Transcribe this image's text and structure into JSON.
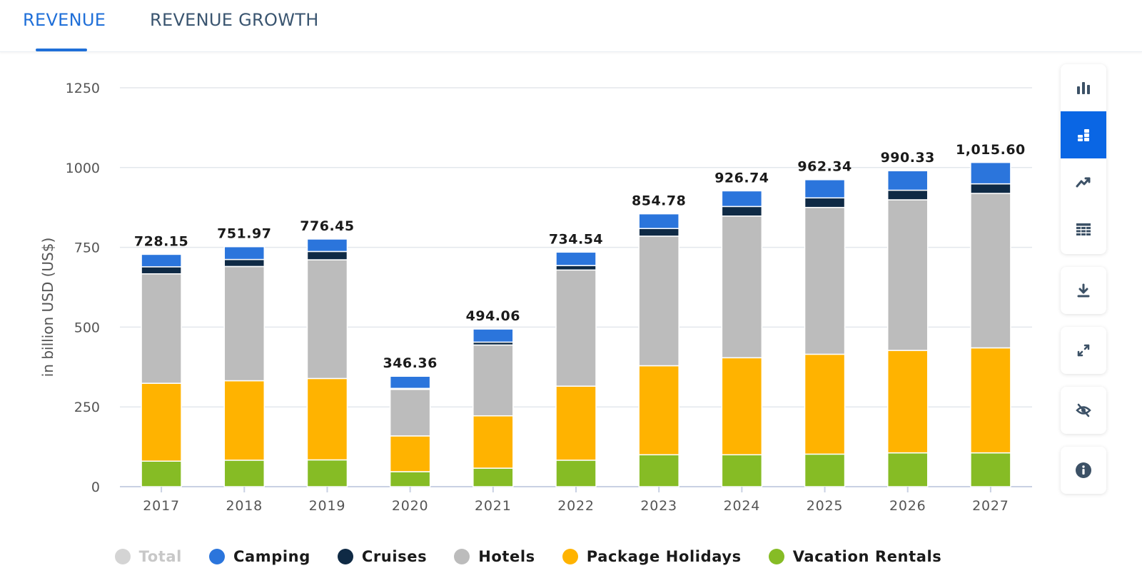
{
  "tabs": [
    {
      "label": "REVENUE",
      "active": true
    },
    {
      "label": "REVENUE GROWTH",
      "active": false
    }
  ],
  "toolbar": {
    "icons": [
      "bar-chart-icon",
      "stacked-bar-icon",
      "line-chart-icon",
      "table-icon",
      "download-icon",
      "fullscreen-icon",
      "hide-icon",
      "info-icon"
    ],
    "active_color": "#0a66e4"
  },
  "chart_data": {
    "type": "bar",
    "stacked": true,
    "title": "",
    "xlabel": "",
    "ylabel": "in billion USD (US$)",
    "ylim": [
      0,
      1250
    ],
    "yticks": [
      0,
      250,
      500,
      750,
      1000,
      1250
    ],
    "grid": true,
    "legend_position": "bottom",
    "categories": [
      "2017",
      "2018",
      "2019",
      "2020",
      "2021",
      "2022",
      "2023",
      "2024",
      "2025",
      "2026",
      "2027"
    ],
    "totals": [
      728.15,
      751.97,
      776.45,
      346.36,
      494.06,
      734.54,
      854.78,
      926.74,
      962.34,
      990.33,
      1015.6
    ],
    "total_labels": [
      "728.15",
      "751.97",
      "776.45",
      "346.36",
      "494.06",
      "734.54",
      "854.78",
      "926.74",
      "962.34",
      "990.33",
      "1,015.60"
    ],
    "series": [
      {
        "name": "Vacation Rentals",
        "color": "#86bc25",
        "values": [
          80,
          83,
          84,
          47,
          58,
          83,
          100,
          100,
          102,
          106,
          106
        ]
      },
      {
        "name": "Package Holidays",
        "color": "#ffb300",
        "values": [
          244,
          249,
          255,
          112,
          164,
          232,
          279,
          304,
          313,
          321,
          329
        ]
      },
      {
        "name": "Hotels",
        "color": "#bcbcbc",
        "values": [
          343,
          358,
          372,
          146,
          222,
          364,
          406,
          444,
          460,
          472,
          484
        ]
      },
      {
        "name": "Cruises",
        "color": "#0f2a45",
        "values": [
          22,
          22,
          26,
          3,
          9,
          14,
          24,
          30,
          30,
          30,
          30
        ]
      },
      {
        "name": "Camping",
        "color": "#2b75dc",
        "values": [
          39,
          40,
          39,
          38,
          41,
          42,
          46,
          49,
          57,
          61,
          67
        ]
      }
    ],
    "legend": [
      {
        "name": "Total",
        "color": "#d4d4d4",
        "hidden": true
      },
      {
        "name": "Camping",
        "color": "#2b75dc",
        "hidden": false
      },
      {
        "name": "Cruises",
        "color": "#0f2a45",
        "hidden": false
      },
      {
        "name": "Hotels",
        "color": "#bcbcbc",
        "hidden": false
      },
      {
        "name": "Package Holidays",
        "color": "#ffb300",
        "hidden": false
      },
      {
        "name": "Vacation Rentals",
        "color": "#86bc25",
        "hidden": false
      }
    ]
  }
}
